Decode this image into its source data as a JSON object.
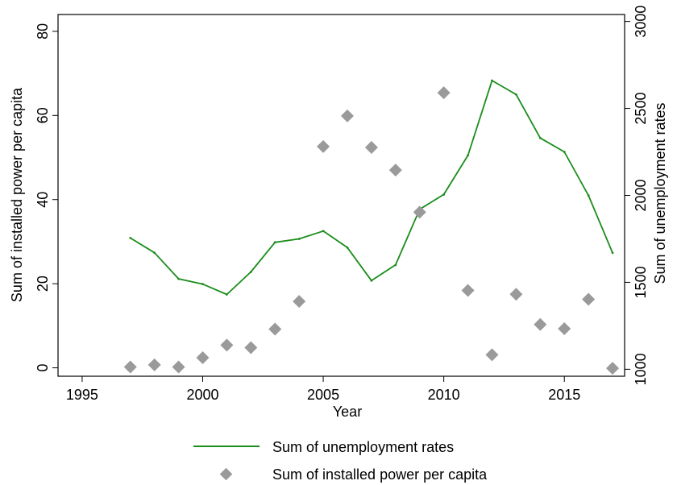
{
  "chart_data": {
    "type": "line",
    "x": [
      1997,
      1998,
      1999,
      2000,
      2001,
      2002,
      2003,
      2004,
      2005,
      2006,
      2007,
      2008,
      2009,
      2010,
      2011,
      2012,
      2013,
      2014,
      2015,
      2016,
      2017
    ],
    "series": [
      {
        "name": "Sum of unemployment rates",
        "type": "line",
        "axis": "right",
        "color": "#1a8c1a",
        "values": [
          1755,
          1670,
          1520,
          1490,
          1430,
          1560,
          1730,
          1750,
          1795,
          1700,
          1510,
          1600,
          1920,
          2005,
          2230,
          2660,
          2580,
          2330,
          2250,
          2000,
          1670
        ]
      },
      {
        "name": "Sum of installed power per capita",
        "type": "scatter",
        "axis": "left",
        "color": "#9a9a9a",
        "marker": "diamond",
        "values": [
          0.2,
          0.7,
          0.2,
          2.4,
          5.4,
          4.8,
          9.2,
          15.8,
          52.6,
          59.9,
          52.4,
          47.0,
          37.0,
          65.4,
          18.4,
          3.1,
          17.5,
          10.3,
          9.3,
          16.3,
          -0.1
        ]
      }
    ],
    "xlabel": "Year",
    "ylabel_left": "Sum of installed power per capita",
    "ylabel_right": "Sum of unemployment rates",
    "xlim": [
      1994,
      2017.5
    ],
    "xticks": [
      "1995",
      "2000",
      "2005",
      "2010",
      "2015"
    ],
    "ylim_left": [
      -2,
      84
    ],
    "yticks_left": [
      "0",
      "20",
      "40",
      "60",
      "80"
    ],
    "ylim_right": [
      960,
      3040
    ],
    "yticks_right": [
      "1000",
      "1500",
      "2000",
      "2500",
      "3000"
    ],
    "legend": {
      "position": "bottom",
      "entries": [
        "Sum of unemployment rates",
        "Sum of installed power per capita"
      ]
    },
    "grid": false
  }
}
